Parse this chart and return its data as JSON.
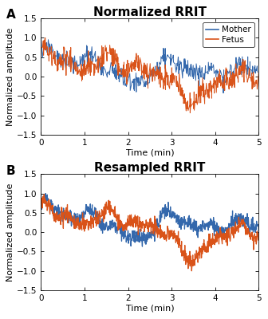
{
  "title_A": "Normalized RRIT",
  "title_B": "Resampled RRIT",
  "label_A": "A",
  "label_B": "B",
  "xlabel": "Time (min)",
  "ylabel": "Normalized amplitude",
  "ylim": [
    -1.5,
    1.5
  ],
  "xlim": [
    0,
    5
  ],
  "xticks": [
    0,
    1,
    2,
    3,
    4,
    5
  ],
  "yticks": [
    -1.5,
    -1.0,
    -0.5,
    0.0,
    0.5,
    1.0,
    1.5
  ],
  "color_mother": "#3468AC",
  "color_fetus": "#D95319",
  "legend_labels": [
    "Mother",
    "Fetus"
  ],
  "title_fontsize": 11,
  "label_fontsize": 8,
  "tick_fontsize": 7.5,
  "legend_fontsize": 7.5,
  "linewidth_A": 0.7,
  "linewidth_B": 0.9
}
